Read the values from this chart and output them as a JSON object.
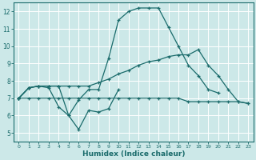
{
  "xlabel": "Humidex (Indice chaleur)",
  "bg_color": "#cce8e8",
  "grid_color": "#ffffff",
  "line_color": "#1a6b6b",
  "xlim": [
    -0.5,
    23.5
  ],
  "ylim": [
    4.5,
    12.5
  ],
  "xticks": [
    0,
    1,
    2,
    3,
    4,
    5,
    6,
    7,
    8,
    9,
    10,
    11,
    12,
    13,
    14,
    15,
    16,
    17,
    18,
    19,
    20,
    21,
    22,
    23
  ],
  "yticks": [
    5,
    6,
    7,
    8,
    9,
    10,
    11,
    12
  ],
  "line1_x": [
    0,
    1,
    2,
    3,
    4,
    5,
    6,
    7,
    8,
    9,
    10,
    11,
    12,
    13,
    14,
    15,
    16,
    17,
    18,
    19,
    20,
    21
  ],
  "line1_y": [
    7.0,
    7.6,
    7.7,
    7.7,
    7.7,
    6.0,
    6.9,
    7.5,
    7.5,
    9.3,
    11.5,
    12.0,
    12.2,
    12.2,
    12.2,
    11.1,
    10.0,
    8.9,
    8.3,
    7.5,
    7.3,
    null
  ],
  "line2_x": [
    0,
    1,
    2,
    3,
    4,
    5,
    6,
    7,
    8,
    9,
    10,
    11,
    12,
    13,
    14,
    15,
    16,
    17,
    18,
    19,
    20,
    21,
    22,
    23
  ],
  "line2_y": [
    7.0,
    7.6,
    7.7,
    7.7,
    7.7,
    7.7,
    7.7,
    7.7,
    7.9,
    8.1,
    8.4,
    8.6,
    8.9,
    9.1,
    9.2,
    9.4,
    9.5,
    9.5,
    9.8,
    8.9,
    8.3,
    7.5,
    6.8,
    6.7
  ],
  "line3_x": [
    0,
    1,
    2,
    3,
    4,
    5,
    6,
    7,
    8,
    9,
    10,
    11,
    12,
    13,
    14,
    15,
    16,
    17,
    18,
    19,
    20,
    21,
    22,
    23
  ],
  "line3_y": [
    7.0,
    7.0,
    7.0,
    7.0,
    7.0,
    7.0,
    7.0,
    7.0,
    7.0,
    7.0,
    7.0,
    7.0,
    7.0,
    7.0,
    7.0,
    7.0,
    7.0,
    6.8,
    6.8,
    6.8,
    6.8,
    6.8,
    6.8,
    6.7
  ],
  "line4_x": [
    0,
    1,
    2,
    3,
    4,
    5,
    6,
    7,
    8,
    9,
    10
  ],
  "line4_y": [
    7.0,
    7.6,
    7.7,
    7.6,
    6.5,
    6.0,
    5.2,
    6.3,
    6.2,
    6.4,
    7.5
  ]
}
